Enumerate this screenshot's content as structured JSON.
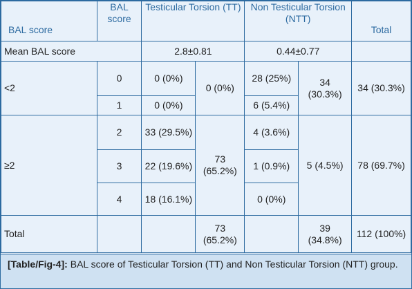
{
  "headers": {
    "bal_score": "BAL score",
    "bal_score_sub": "BAL score",
    "tt": "Testicular Torsion (TT)",
    "ntt": "Non Testicular Torsion (NTT)",
    "total": "Total"
  },
  "mean_row": {
    "label": "Mean BAL score",
    "tt": "2.8±0.81",
    "ntt": "0.44±0.77"
  },
  "group_lt2": {
    "label": "<2",
    "rows": [
      {
        "score": "0",
        "tt": "0 (0%)",
        "ntt": "28 (25%)"
      },
      {
        "score": "1",
        "tt": "0 (0%)",
        "ntt": "6 (5.4%)"
      }
    ],
    "tt_total": "0 (0%)",
    "ntt_total": "34 (30.3%)",
    "total": "34 (30.3%)"
  },
  "group_ge2": {
    "label": "≥2",
    "rows": [
      {
        "score": "2",
        "tt": "33 (29.5%)",
        "ntt": "4 (3.6%)"
      },
      {
        "score": "3",
        "tt": "22 (19.6%)",
        "ntt": "1 (0.9%)"
      },
      {
        "score": "4",
        "tt": "18 (16.1%)",
        "ntt": "0 (0%)"
      }
    ],
    "tt_total": "73 (65.2%)",
    "ntt_total": "5 (4.5%)",
    "total": "78 (69.7%)"
  },
  "total_row": {
    "label": "Total",
    "tt": "73 (65.2%)",
    "ntt": "39 (34.8%)",
    "total": "112 (100%)"
  },
  "caption": {
    "ref": "[Table/Fig-4]:",
    "text": " BAL score of Testicular Torsion (TT) and Non Testicular Torsion (NTT) group."
  },
  "colors": {
    "border": "#2c6aa0",
    "header_text": "#2c6aa0",
    "table_bg": "#e8f1fa",
    "caption_bg": "#cfe1f2"
  }
}
